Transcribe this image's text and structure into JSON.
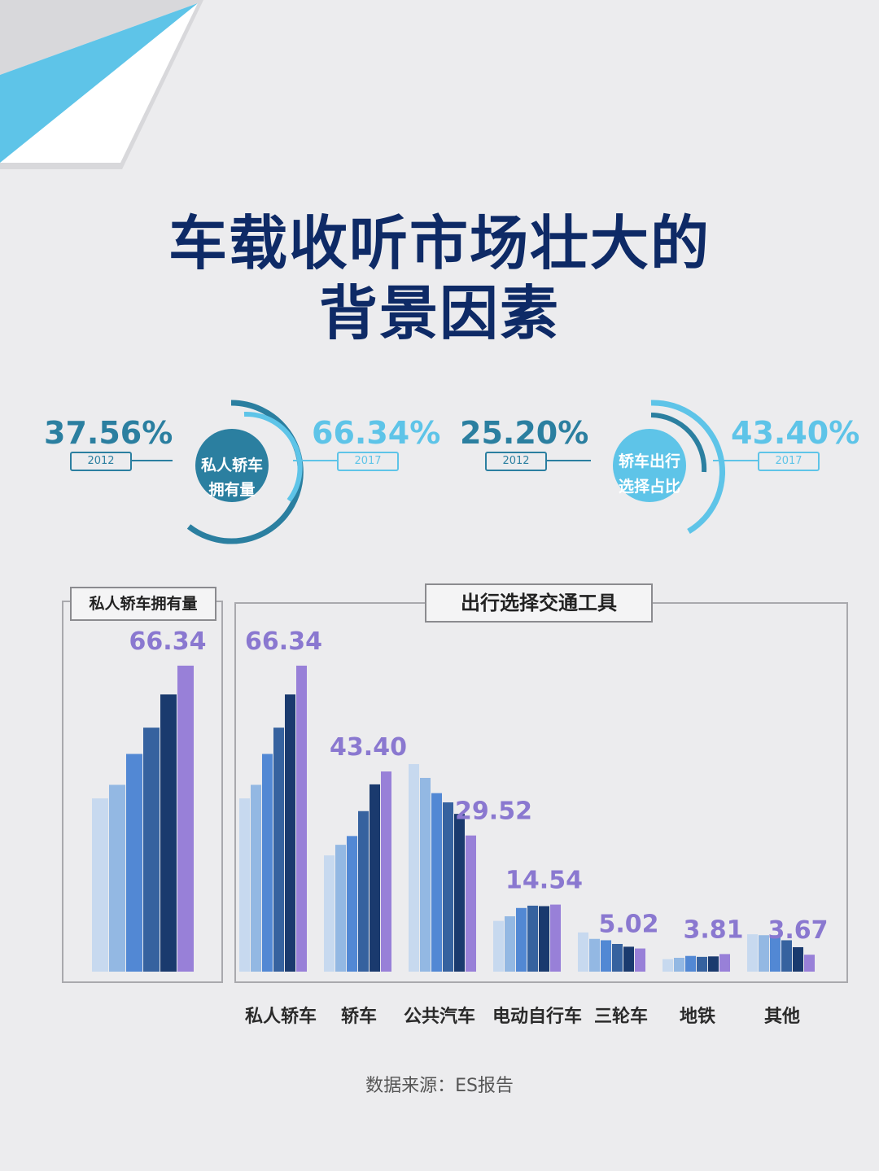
{
  "title": {
    "line1": "车载收听市场壮大的",
    "line2": "背景因素"
  },
  "kpis": [
    {
      "label_line1": "私人轿车",
      "label_line2": "拥有量",
      "start_value": "37.56%",
      "start_year": "2012",
      "end_value": "66.34%",
      "end_year": "2017"
    },
    {
      "label_line1": "轿车出行",
      "label_line2": "选择占比",
      "start_value": "25.20%",
      "start_year": "2012",
      "end_value": "43.40%",
      "end_year": "2017"
    }
  ],
  "colors": {
    "title": "#0e2a66",
    "teal": "#2b7fa0",
    "light_blue": "#5ec4e8",
    "label_purple": "#8a78d0",
    "years": [
      "#c7d9ef",
      "#93b8e3",
      "#5288d4",
      "#36629f",
      "#1a3a6e",
      "#9880d8"
    ]
  },
  "chart_data": [
    {
      "type": "bar",
      "title": "私人轿车拥有量",
      "categories": [
        "私人轿车"
      ],
      "series": [
        {
          "values": [
            37.56
          ]
        },
        {
          "values": [
            40.5
          ]
        },
        {
          "values": [
            47.2
          ]
        },
        {
          "values": [
            52.9
          ]
        },
        {
          "values": [
            60.1
          ]
        },
        {
          "values": [
            66.34
          ]
        }
      ],
      "data_labels": [
        {
          "series": 5,
          "category": 0,
          "text": "66.34"
        }
      ],
      "ylim": [
        0,
        80
      ]
    },
    {
      "type": "bar",
      "title": "出行选择交通工具",
      "categories": [
        "私人轿车",
        "轿车",
        "公共汽车",
        "电动自行车",
        "三轮车",
        "地铁",
        "其他"
      ],
      "series": [
        {
          "values": [
            37.56,
            25.2,
            45.0,
            11.0,
            8.5,
            2.7,
            8.1
          ]
        },
        {
          "values": [
            40.5,
            27.5,
            42.0,
            12.0,
            7.1,
            3.0,
            7.9
          ]
        },
        {
          "values": [
            47.2,
            29.4,
            38.7,
            13.8,
            6.8,
            3.4,
            7.9
          ]
        },
        {
          "values": [
            52.9,
            34.8,
            36.7,
            14.3,
            6.0,
            3.2,
            6.8
          ]
        },
        {
          "values": [
            60.1,
            40.6,
            34.2,
            14.2,
            5.4,
            3.3,
            5.3
          ]
        },
        {
          "values": [
            66.34,
            43.4,
            29.52,
            14.54,
            5.02,
            3.81,
            3.67
          ]
        }
      ],
      "data_labels": [
        {
          "series": 5,
          "category": 0,
          "text": "66.34"
        },
        {
          "series": 5,
          "category": 1,
          "text": "43.40"
        },
        {
          "series": 5,
          "category": 2,
          "text": "29.52"
        },
        {
          "series": 5,
          "category": 3,
          "text": "14.54"
        },
        {
          "series": 5,
          "category": 4,
          "text": "5.02"
        },
        {
          "series": 5,
          "category": 5,
          "text": "3.81"
        },
        {
          "series": 5,
          "category": 6,
          "text": "3.67"
        }
      ],
      "ylim": [
        0,
        80
      ]
    }
  ],
  "source": "数据来源：ES报告"
}
